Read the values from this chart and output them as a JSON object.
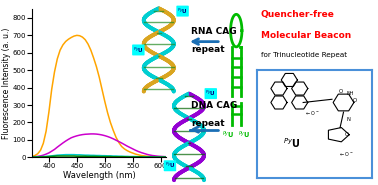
{
  "xlabel": "Wavelength (nm)",
  "ylabel": "Fluorescence Intensity (a. u.)",
  "xlim": [
    370,
    610
  ],
  "ylim": [
    0,
    850
  ],
  "yticks": [
    0,
    100,
    200,
    300,
    400,
    500,
    600,
    700,
    800
  ],
  "xticks": [
    400,
    450,
    500,
    550,
    600
  ],
  "background_color": "#ffffff",
  "curves": {
    "orange": {
      "color": "#FFA500",
      "x": [
        370,
        375,
        380,
        385,
        390,
        395,
        400,
        405,
        410,
        415,
        420,
        425,
        430,
        435,
        440,
        445,
        450,
        455,
        460,
        465,
        470,
        475,
        480,
        485,
        490,
        495,
        500,
        505,
        510,
        515,
        520,
        525,
        530,
        535,
        540,
        545,
        550,
        555,
        560,
        565,
        570,
        575,
        580,
        585,
        590,
        595,
        600,
        605,
        610
      ],
      "y": [
        5,
        10,
        20,
        40,
        80,
        150,
        260,
        390,
        490,
        565,
        615,
        645,
        665,
        678,
        688,
        696,
        700,
        698,
        690,
        675,
        650,
        615,
        570,
        520,
        460,
        390,
        320,
        255,
        200,
        155,
        115,
        85,
        62,
        48,
        38,
        30,
        24,
        18,
        14,
        10,
        8,
        6,
        5,
        4,
        3,
        3,
        2,
        2,
        1
      ]
    },
    "magenta": {
      "color": "#CC00CC",
      "x": [
        370,
        375,
        380,
        385,
        390,
        395,
        400,
        405,
        410,
        415,
        420,
        425,
        430,
        435,
        440,
        445,
        450,
        455,
        460,
        465,
        470,
        475,
        480,
        485,
        490,
        495,
        500,
        505,
        510,
        515,
        520,
        525,
        530,
        535,
        540,
        545,
        550,
        555,
        560,
        565,
        570,
        575,
        580,
        585,
        590,
        595,
        600,
        605,
        610
      ],
      "y": [
        2,
        3,
        5,
        8,
        12,
        18,
        25,
        35,
        45,
        58,
        70,
        82,
        93,
        103,
        112,
        118,
        123,
        127,
        130,
        132,
        133,
        134,
        134,
        133,
        131,
        128,
        124,
        119,
        113,
        106,
        98,
        90,
        82,
        73,
        64,
        56,
        48,
        40,
        33,
        27,
        22,
        17,
        13,
        10,
        8,
        6,
        5,
        4,
        3
      ]
    },
    "cyan": {
      "color": "#00CCCC",
      "x": [
        370,
        375,
        380,
        385,
        390,
        395,
        400,
        405,
        410,
        415,
        420,
        425,
        430,
        435,
        440,
        445,
        450,
        455,
        460,
        465,
        470,
        475,
        480,
        485,
        490,
        495,
        500,
        505,
        510,
        515,
        520,
        525,
        530,
        535,
        540,
        545,
        550,
        555,
        560,
        565,
        570,
        575,
        580,
        585,
        590,
        595,
        600,
        605,
        610
      ],
      "y": [
        1,
        1,
        2,
        3,
        4,
        5,
        6,
        8,
        10,
        12,
        13,
        14,
        15,
        15,
        15,
        15,
        14,
        14,
        13,
        12,
        12,
        11,
        11,
        10,
        10,
        9,
        9,
        8,
        8,
        7,
        7,
        6,
        6,
        5,
        5,
        4,
        4,
        4,
        3,
        3,
        3,
        2,
        2,
        2,
        2,
        1,
        1,
        1,
        1
      ]
    },
    "green": {
      "color": "#008000",
      "x": [
        370,
        375,
        380,
        385,
        390,
        395,
        400,
        405,
        410,
        415,
        420,
        425,
        430,
        435,
        440,
        445,
        450,
        455,
        460,
        465,
        470,
        475,
        480,
        485,
        490,
        495,
        500,
        505,
        510,
        515,
        520,
        525,
        530,
        535,
        540,
        545,
        550,
        555,
        560,
        565,
        570,
        575,
        580,
        585,
        590,
        595,
        600,
        605,
        610
      ],
      "y": [
        1,
        1,
        1,
        2,
        2,
        3,
        4,
        5,
        6,
        7,
        7,
        7,
        7,
        7,
        7,
        7,
        6,
        6,
        6,
        6,
        5,
        5,
        5,
        5,
        4,
        4,
        4,
        4,
        4,
        3,
        3,
        3,
        3,
        3,
        2,
        2,
        2,
        2,
        2,
        2,
        1,
        1,
        1,
        1,
        1,
        1,
        1,
        1,
        1
      ]
    }
  },
  "rna_text": [
    "RNA CAG",
    "repeat"
  ],
  "dna_text": [
    "DNA CAG",
    "repeat"
  ],
  "quencher_red": [
    "Quencher-free",
    "Molecular Beacon"
  ],
  "quencher_black": "for Trinucleotide Repeat",
  "beacon_color": "#00BB00",
  "arrow_color": "#1B6FB5",
  "pyu_label": "PyU",
  "box_color": "#4A90D9",
  "helix_rna_colors": [
    "#DAA520",
    "#00CED1",
    "#228B22"
  ],
  "helix_dna_colors": [
    "#9400D3",
    "#00CED1",
    "#006400"
  ]
}
